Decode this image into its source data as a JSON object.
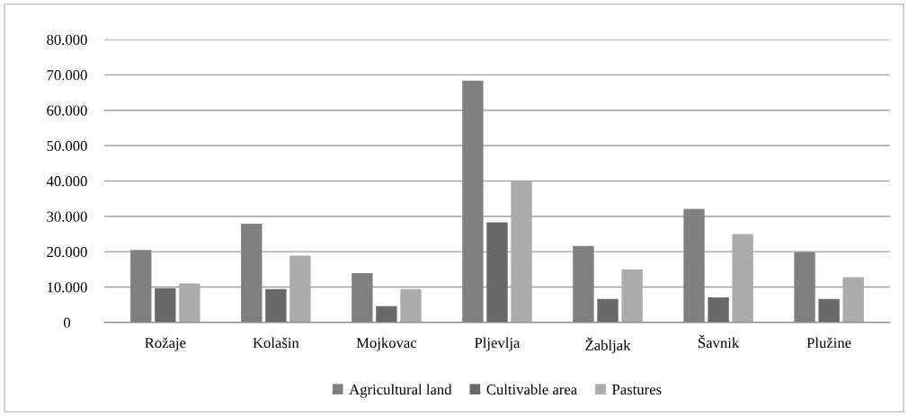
{
  "chart_data": {
    "type": "bar",
    "categories": [
      "Rožaje",
      "Kolašin",
      "Mojkovac",
      "Pljevlja",
      "Žabljak",
      "Šavnik",
      "Plužine"
    ],
    "series": [
      {
        "name": "Agricultural land",
        "color": "#808080",
        "values": [
          20500,
          27900,
          13900,
          68400,
          21600,
          32100,
          19900
        ]
      },
      {
        "name": "Cultivable area",
        "color": "#696969",
        "values": [
          9700,
          9400,
          4600,
          28300,
          6600,
          7100,
          6600
        ]
      },
      {
        "name": "Pastures",
        "color": "#ababab",
        "values": [
          11000,
          18900,
          9400,
          40000,
          15000,
          25000,
          12800
        ]
      }
    ],
    "ylim": [
      0,
      80000
    ],
    "yticks": [
      0,
      {
        "value": 10000,
        "label": "10.000"
      },
      {
        "value": 20000,
        "label": "20.000"
      },
      {
        "value": 30000,
        "label": "30.000"
      },
      {
        "value": 40000,
        "label": "40.000"
      },
      {
        "value": 50000,
        "label": "50.000"
      },
      {
        "value": 60000,
        "label": "60.000"
      },
      {
        "value": 70000,
        "label": "70.000"
      },
      {
        "value": 80000,
        "label": "80.000"
      }
    ],
    "grid": "y",
    "legend": "bottom"
  }
}
